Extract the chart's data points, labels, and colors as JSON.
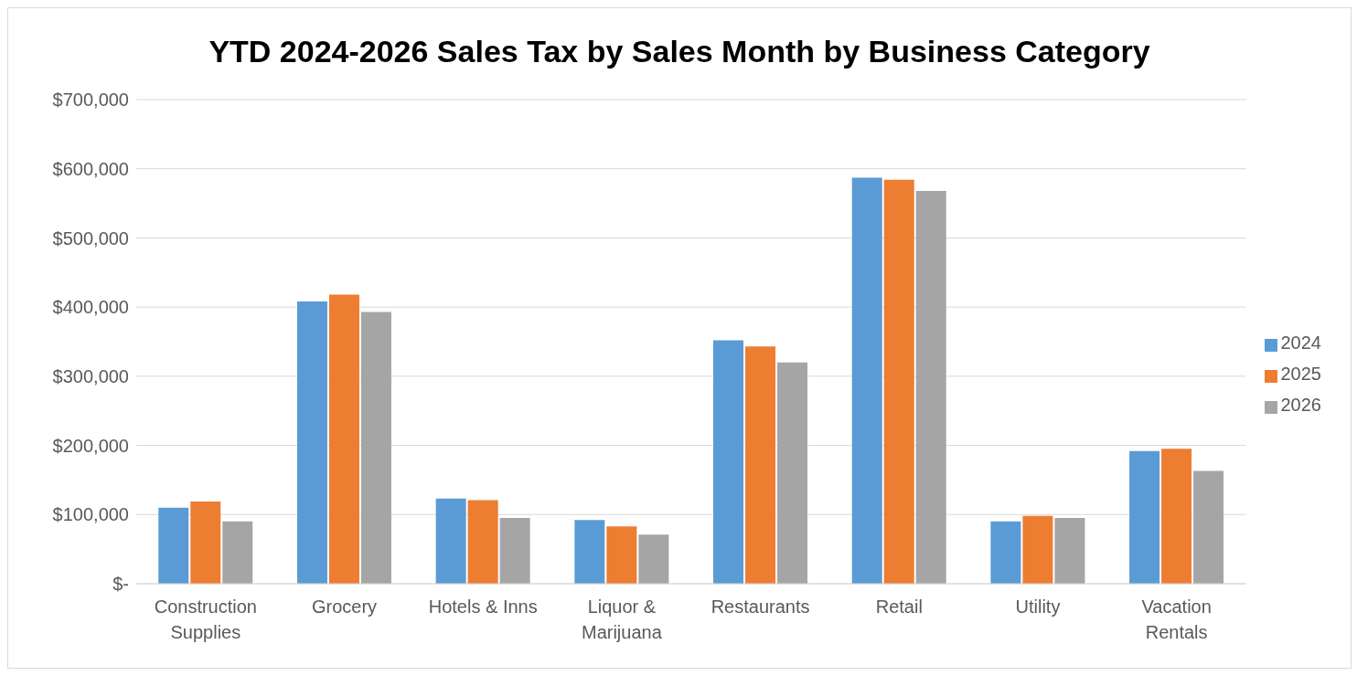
{
  "chart_data": {
    "type": "bar",
    "title": "YTD 2024-2026 Sales Tax by Sales Month by Business Category",
    "categories": [
      "Construction Supplies",
      "Grocery",
      "Hotels & Inns",
      "Liquor & Marijuana",
      "Restaurants",
      "Retail",
      "Utility",
      "Vacation Rentals"
    ],
    "series": [
      {
        "name": "2024",
        "color": "#5b9bd5",
        "values": [
          110000,
          408000,
          123000,
          92000,
          352000,
          587000,
          90000,
          192000
        ]
      },
      {
        "name": "2025",
        "color": "#ed7d31",
        "values": [
          119000,
          418000,
          121000,
          83000,
          343000,
          584000,
          98000,
          195000
        ]
      },
      {
        "name": "2026",
        "color": "#a5a5a5",
        "values": [
          90000,
          393000,
          95000,
          71000,
          320000,
          568000,
          95000,
          163000
        ]
      }
    ],
    "ylim": [
      0,
      700000
    ],
    "yticks": [
      {
        "value": 0,
        "label": "$-"
      },
      {
        "value": 100000,
        "label": "$100,000"
      },
      {
        "value": 200000,
        "label": "$200,000"
      },
      {
        "value": 300000,
        "label": "$300,000"
      },
      {
        "value": 400000,
        "label": "$400,000"
      },
      {
        "value": 500000,
        "label": "$500,000"
      },
      {
        "value": 600000,
        "label": "$600,000"
      },
      {
        "value": 700000,
        "label": "$700,000"
      }
    ],
    "grid": "y",
    "legend": "right"
  }
}
